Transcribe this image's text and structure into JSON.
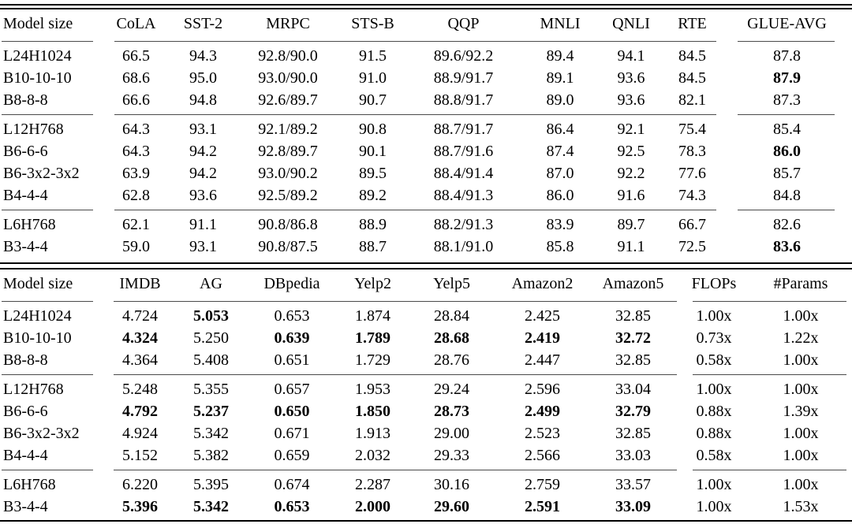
{
  "page": {
    "background": "#ffffff",
    "text_color": "#000000",
    "rule_color": "#000000"
  },
  "table_glue": {
    "columns": [
      "Model size",
      "CoLA",
      "SST-2",
      "MRPC",
      "STS-B",
      "QQP",
      "MNLI",
      "QNLI",
      "RTE",
      "GLUE-AVG"
    ],
    "groups": [
      {
        "rows": [
          {
            "label": "L24H1024",
            "cells": [
              "66.5",
              "94.3",
              "92.8/90.0",
              "91.5",
              "89.6/92.2",
              "89.4",
              "94.1",
              "84.5",
              "87.8"
            ]
          },
          {
            "label": "B10-10-10",
            "cells": [
              "68.6",
              "95.0",
              "93.0/90.0",
              "91.0",
              "88.9/91.7",
              "89.1",
              "93.6",
              "84.5",
              {
                "v": "87.9",
                "b": true
              }
            ]
          },
          {
            "label": "B8-8-8",
            "cells": [
              "66.6",
              "94.8",
              "92.6/89.7",
              "90.7",
              "88.8/91.7",
              "89.0",
              "93.6",
              "82.1",
              "87.3"
            ]
          }
        ]
      },
      {
        "rows": [
          {
            "label": "L12H768",
            "cells": [
              "64.3",
              "93.1",
              "92.1/89.2",
              "90.8",
              "88.7/91.7",
              "86.4",
              "92.1",
              "75.4",
              "85.4"
            ]
          },
          {
            "label": "B6-6-6",
            "cells": [
              "64.3",
              "94.2",
              "92.8/89.7",
              "90.1",
              "88.7/91.6",
              "87.4",
              "92.5",
              "78.3",
              {
                "v": "86.0",
                "b": true
              }
            ]
          },
          {
            "label": "B6-3x2-3x2",
            "cells": [
              "63.9",
              "94.2",
              "93.0/90.2",
              "89.5",
              "88.4/91.4",
              "87.0",
              "92.2",
              "77.6",
              "85.7"
            ]
          },
          {
            "label": "B4-4-4",
            "cells": [
              "62.8",
              "93.6",
              "92.5/89.2",
              "89.2",
              "88.4/91.3",
              "86.0",
              "91.6",
              "74.3",
              "84.8"
            ]
          }
        ]
      },
      {
        "rows": [
          {
            "label": "L6H768",
            "cells": [
              "62.1",
              "91.1",
              "90.8/86.8",
              "88.9",
              "88.2/91.3",
              "83.9",
              "89.7",
              "66.7",
              "82.6"
            ]
          },
          {
            "label": "B3-4-4",
            "cells": [
              "59.0",
              "93.1",
              "90.8/87.5",
              "88.7",
              "88.1/91.0",
              "85.8",
              "91.1",
              "72.5",
              {
                "v": "83.6",
                "b": true
              }
            ]
          }
        ]
      }
    ]
  },
  "table_text": {
    "columns": [
      "Model size",
      "IMDB",
      "AG",
      "DBpedia",
      "Yelp2",
      "Yelp5",
      "Amazon2",
      "Amazon5",
      "FLOPs",
      "#Params"
    ],
    "groups": [
      {
        "rows": [
          {
            "label": "L24H1024",
            "cells": [
              "4.724",
              {
                "v": "5.053",
                "b": true
              },
              "0.653",
              "1.874",
              "28.84",
              "2.425",
              "32.85",
              "1.00x",
              "1.00x"
            ]
          },
          {
            "label": "B10-10-10",
            "cells": [
              {
                "v": "4.324",
                "b": true
              },
              "5.250",
              {
                "v": "0.639",
                "b": true
              },
              {
                "v": "1.789",
                "b": true
              },
              {
                "v": "28.68",
                "b": true
              },
              {
                "v": "2.419",
                "b": true
              },
              {
                "v": "32.72",
                "b": true
              },
              "0.73x",
              "1.22x"
            ]
          },
          {
            "label": "B8-8-8",
            "cells": [
              "4.364",
              "5.408",
              "0.651",
              "1.729",
              "28.76",
              "2.447",
              "32.85",
              "0.58x",
              "1.00x"
            ]
          }
        ]
      },
      {
        "rows": [
          {
            "label": "L12H768",
            "cells": [
              "5.248",
              "5.355",
              "0.657",
              "1.953",
              "29.24",
              "2.596",
              "33.04",
              "1.00x",
              "1.00x"
            ]
          },
          {
            "label": "B6-6-6",
            "cells": [
              {
                "v": "4.792",
                "b": true
              },
              {
                "v": "5.237",
                "b": true
              },
              {
                "v": "0.650",
                "b": true
              },
              {
                "v": "1.850",
                "b": true
              },
              {
                "v": "28.73",
                "b": true
              },
              {
                "v": "2.499",
                "b": true
              },
              {
                "v": "32.79",
                "b": true
              },
              "0.88x",
              "1.39x"
            ]
          },
          {
            "label": "B6-3x2-3x2",
            "cells": [
              "4.924",
              "5.342",
              "0.671",
              "1.913",
              "29.00",
              "2.523",
              "32.85",
              "0.88x",
              "1.00x"
            ]
          },
          {
            "label": "B4-4-4",
            "cells": [
              "5.152",
              "5.382",
              "0.659",
              "2.032",
              "29.33",
              "2.566",
              "33.03",
              "0.58x",
              "1.00x"
            ]
          }
        ]
      },
      {
        "rows": [
          {
            "label": "L6H768",
            "cells": [
              "6.220",
              "5.395",
              "0.674",
              "2.287",
              "30.16",
              "2.759",
              "33.57",
              "1.00x",
              "1.00x"
            ]
          },
          {
            "label": "B3-4-4",
            "cells": [
              {
                "v": "5.396",
                "b": true
              },
              {
                "v": "5.342",
                "b": true
              },
              {
                "v": "0.653",
                "b": true
              },
              {
                "v": "2.000",
                "b": true
              },
              {
                "v": "29.60",
                "b": true
              },
              {
                "v": "2.591",
                "b": true
              },
              {
                "v": "33.09",
                "b": true
              },
              "1.00x",
              "1.53x"
            ]
          }
        ]
      }
    ]
  }
}
